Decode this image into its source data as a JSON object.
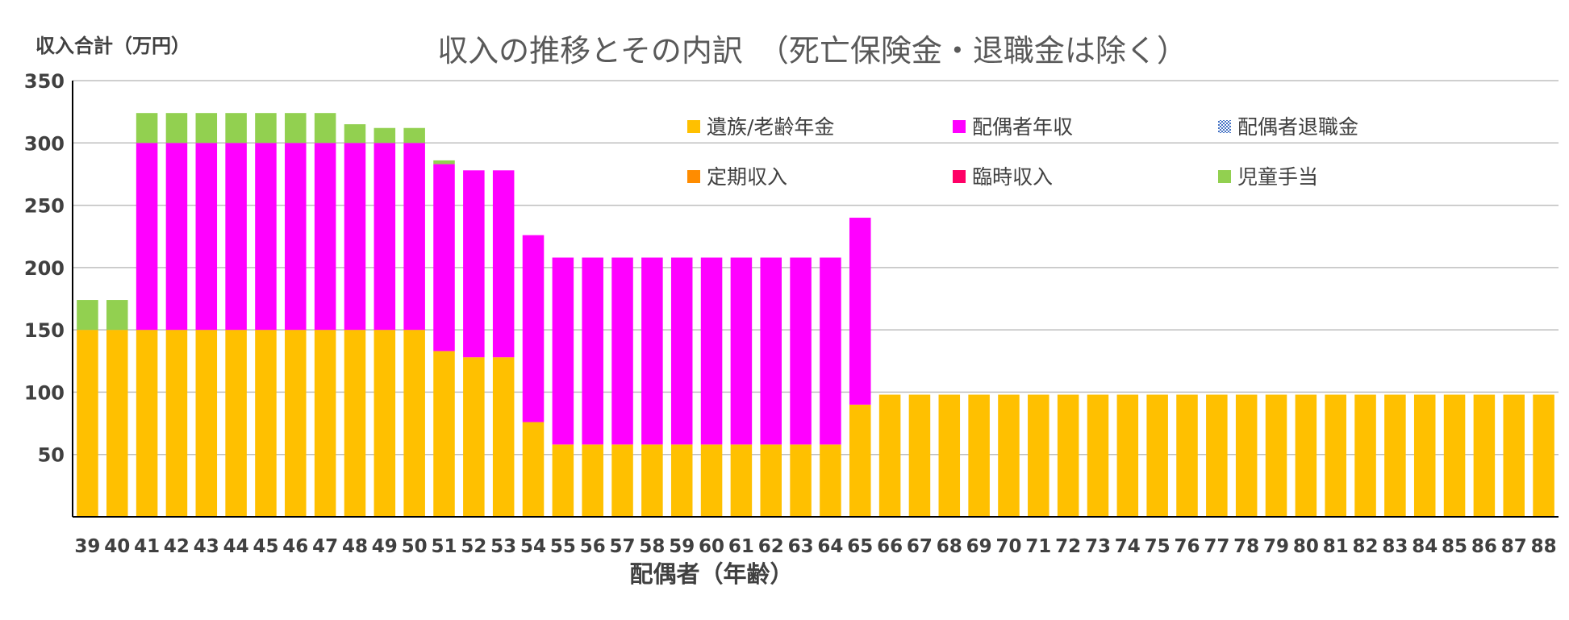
{
  "chart_data": {
    "type": "bar",
    "stacked": true,
    "title": "収入の推移とその内訳　（死亡保険金・退職金は除く）",
    "xlabel": "配偶者（年齢）",
    "ylabel": "収入合計（万円）",
    "ylim": [
      0,
      350
    ],
    "yticks": [
      50,
      100,
      150,
      200,
      250,
      300,
      350
    ],
    "grid": true,
    "legend_position": "top-right (inside plot, 3 columns × 2 rows)",
    "categories": [
      "39",
      "40",
      "41",
      "42",
      "43",
      "44",
      "45",
      "46",
      "47",
      "48",
      "49",
      "50",
      "51",
      "52",
      "53",
      "54",
      "55",
      "56",
      "57",
      "58",
      "59",
      "60",
      "61",
      "62",
      "63",
      "64",
      "65",
      "66",
      "67",
      "68",
      "69",
      "70",
      "71",
      "72",
      "73",
      "74",
      "75",
      "76",
      "77",
      "78",
      "79",
      "80",
      "81",
      "82",
      "83",
      "84",
      "85",
      "86",
      "87",
      "88"
    ],
    "series": [
      {
        "name": "遺族/老齢年金",
        "color": "#FFC000",
        "values": [
          150,
          150,
          150,
          150,
          150,
          150,
          150,
          150,
          150,
          150,
          150,
          150,
          133,
          128,
          128,
          76,
          58,
          58,
          58,
          58,
          58,
          58,
          58,
          58,
          58,
          58,
          90,
          98,
          98,
          98,
          98,
          98,
          98,
          98,
          98,
          98,
          98,
          98,
          98,
          98,
          98,
          98,
          98,
          98,
          98,
          98,
          98,
          98,
          98,
          98
        ]
      },
      {
        "name": "配偶者年収",
        "color": "#FF00FF",
        "values": [
          0,
          0,
          150,
          150,
          150,
          150,
          150,
          150,
          150,
          150,
          150,
          150,
          150,
          150,
          150,
          150,
          150,
          150,
          150,
          150,
          150,
          150,
          150,
          150,
          150,
          150,
          150,
          0,
          0,
          0,
          0,
          0,
          0,
          0,
          0,
          0,
          0,
          0,
          0,
          0,
          0,
          0,
          0,
          0,
          0,
          0,
          0,
          0,
          0,
          0
        ]
      },
      {
        "name": "配偶者退職金",
        "color": "#4472C4",
        "pattern": "checker",
        "values": [
          0,
          0,
          0,
          0,
          0,
          0,
          0,
          0,
          0,
          0,
          0,
          0,
          0,
          0,
          0,
          0,
          0,
          0,
          0,
          0,
          0,
          0,
          0,
          0,
          0,
          0,
          0,
          0,
          0,
          0,
          0,
          0,
          0,
          0,
          0,
          0,
          0,
          0,
          0,
          0,
          0,
          0,
          0,
          0,
          0,
          0,
          0,
          0,
          0,
          0
        ]
      },
      {
        "name": "定期収入",
        "color": "#FF8C00",
        "values": [
          0,
          0,
          0,
          0,
          0,
          0,
          0,
          0,
          0,
          0,
          0,
          0,
          0,
          0,
          0,
          0,
          0,
          0,
          0,
          0,
          0,
          0,
          0,
          0,
          0,
          0,
          0,
          0,
          0,
          0,
          0,
          0,
          0,
          0,
          0,
          0,
          0,
          0,
          0,
          0,
          0,
          0,
          0,
          0,
          0,
          0,
          0,
          0,
          0,
          0
        ]
      },
      {
        "name": "臨時収入",
        "color": "#FF0066",
        "values": [
          0,
          0,
          0,
          0,
          0,
          0,
          0,
          0,
          0,
          0,
          0,
          0,
          0,
          0,
          0,
          0,
          0,
          0,
          0,
          0,
          0,
          0,
          0,
          0,
          0,
          0,
          0,
          0,
          0,
          0,
          0,
          0,
          0,
          0,
          0,
          0,
          0,
          0,
          0,
          0,
          0,
          0,
          0,
          0,
          0,
          0,
          0,
          0,
          0,
          0
        ]
      },
      {
        "name": "児童手当",
        "color": "#92D050",
        "values": [
          24,
          24,
          24,
          24,
          24,
          24,
          24,
          24,
          24,
          15,
          12,
          12,
          3,
          0,
          0,
          0,
          0,
          0,
          0,
          0,
          0,
          0,
          0,
          0,
          0,
          0,
          0,
          0,
          0,
          0,
          0,
          0,
          0,
          0,
          0,
          0,
          0,
          0,
          0,
          0,
          0,
          0,
          0,
          0,
          0,
          0,
          0,
          0,
          0,
          0
        ]
      }
    ]
  }
}
